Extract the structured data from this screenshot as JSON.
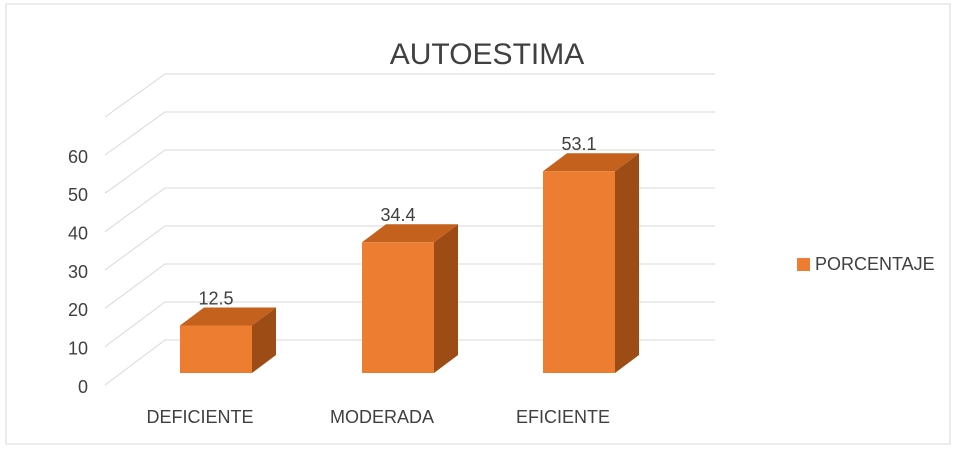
{
  "chart_data": {
    "type": "bar3d",
    "title": "AUTOESTIMA",
    "categories": [
      "DEFICIENTE",
      "MODERADA",
      "EFICIENTE"
    ],
    "series": [
      {
        "name": "PORCENTAJE",
        "color": "#ed7d31",
        "values": [
          12.5,
          34.4,
          53.1
        ]
      }
    ],
    "ylim": [
      0,
      60
    ],
    "yticks": [
      0,
      10,
      20,
      30,
      40,
      50,
      60
    ],
    "grid": true,
    "legend": "right"
  }
}
